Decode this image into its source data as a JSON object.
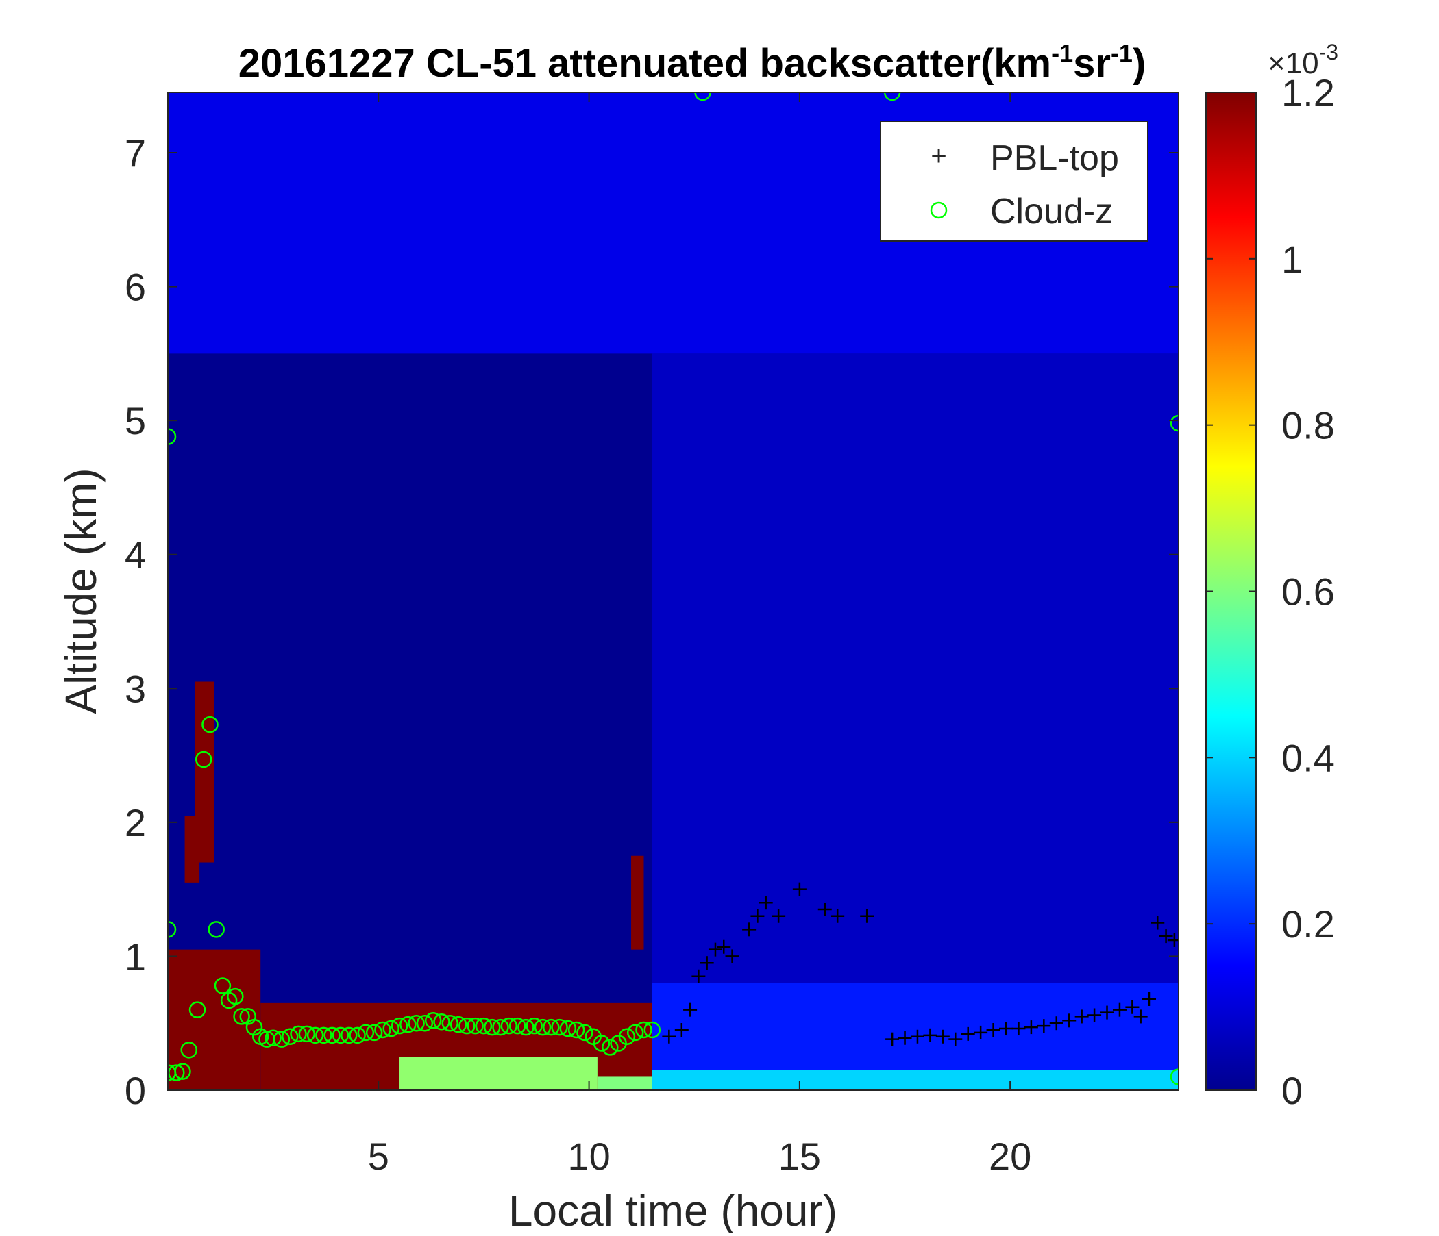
{
  "chart_data": {
    "type": "heatmap",
    "title": "20161227  CL-51 attenuated backscatter(km",
    "title_exp1": "-1",
    "title_mid": "sr",
    "title_exp2": "-1",
    "title_end": ")",
    "xlabel": "Local time (hour)",
    "ylabel": "Altitude (km)",
    "xlim": [
      0,
      24
    ],
    "ylim": [
      0,
      7.45
    ],
    "xticks": [
      5,
      10,
      15,
      20
    ],
    "yticks": [
      0,
      1,
      2,
      3,
      4,
      5,
      6,
      7
    ],
    "colorbar": {
      "range": [
        0,
        1.2
      ],
      "ticks": [
        0,
        0.2,
        0.4,
        0.6,
        0.8,
        1,
        1.2
      ],
      "tick_labels": [
        "0",
        "0.2",
        "0.4",
        "0.6",
        "0.8",
        "1",
        "1.2"
      ],
      "multiplier_base": "×10",
      "multiplier_exp": "-3",
      "colormap": "jet"
    },
    "legend": {
      "placement": "top-right",
      "entries": [
        {
          "name": "PBL-top",
          "marker": "+",
          "color": "#000000"
        },
        {
          "name": "Cloud-z",
          "marker": "o",
          "color": "#00ff00"
        }
      ]
    },
    "regions": [
      {
        "x": [
          0,
          11.5
        ],
        "y": [
          0,
          5.5
        ],
        "value": 0.0
      },
      {
        "x": [
          0,
          24
        ],
        "y": [
          5.5,
          7.45
        ],
        "value": 0.12
      },
      {
        "x": [
          11.5,
          24
        ],
        "y": [
          0,
          5.5
        ],
        "value": 0.07
      },
      {
        "x": [
          11.5,
          24
        ],
        "y": [
          0,
          0.8
        ],
        "value": 0.18
      },
      {
        "x": [
          0,
          2.2
        ],
        "y": [
          0,
          1.05
        ],
        "value": 1.2
      },
      {
        "x": [
          2.2,
          11.5
        ],
        "y": [
          0,
          0.65
        ],
        "value": 1.2
      },
      {
        "x": [
          0.4,
          0.75
        ],
        "y": [
          1.55,
          2.05
        ],
        "value": 1.2
      },
      {
        "x": [
          0.65,
          1.1
        ],
        "y": [
          1.7,
          3.05
        ],
        "value": 1.2
      },
      {
        "x": [
          11.0,
          11.3
        ],
        "y": [
          1.05,
          1.75
        ],
        "value": 1.2
      },
      {
        "x": [
          5.5,
          10.2
        ],
        "y": [
          0,
          0.25
        ],
        "value": 0.62
      },
      {
        "x": [
          10.2,
          11.5
        ],
        "y": [
          0,
          0.1
        ],
        "value": 0.6
      },
      {
        "x": [
          11.5,
          24
        ],
        "y": [
          0,
          0.15
        ],
        "value": 0.4
      }
    ],
    "series": [
      {
        "name": "PBL-top",
        "marker": "+",
        "x": [
          11.9,
          12.2,
          12.4,
          12.6,
          12.8,
          13.0,
          13.2,
          13.4,
          13.8,
          14.0,
          14.2,
          14.5,
          15.0,
          15.6,
          15.9,
          16.6,
          23.5,
          23.7,
          23.9,
          17.2,
          17.5,
          17.8,
          18.1,
          18.4,
          18.7,
          19.0,
          19.3,
          19.6,
          19.9,
          20.2,
          20.5,
          20.8,
          21.1,
          21.4,
          21.7,
          22.0,
          22.3,
          22.6,
          22.9,
          23.1,
          23.3
        ],
        "y": [
          0.4,
          0.45,
          0.6,
          0.85,
          0.95,
          1.05,
          1.07,
          1.0,
          1.2,
          1.3,
          1.4,
          1.3,
          1.5,
          1.35,
          1.3,
          1.3,
          1.25,
          1.15,
          1.12,
          0.38,
          0.39,
          0.4,
          0.41,
          0.4,
          0.38,
          0.42,
          0.43,
          0.45,
          0.46,
          0.46,
          0.47,
          0.48,
          0.5,
          0.52,
          0.55,
          0.56,
          0.58,
          0.6,
          0.62,
          0.55,
          0.68
        ]
      },
      {
        "name": "Cloud-z",
        "marker": "o",
        "x": [
          0.0,
          0.2,
          0.35,
          0.5,
          0.7,
          0.85,
          1.0,
          1.15,
          1.3,
          1.45,
          1.6,
          1.75,
          1.9,
          2.05,
          2.2,
          2.35,
          2.5,
          2.7,
          2.9,
          3.1,
          3.3,
          3.5,
          3.7,
          3.9,
          4.1,
          4.3,
          4.5,
          4.7,
          4.9,
          5.1,
          5.3,
          5.5,
          5.7,
          5.9,
          6.1,
          6.3,
          6.5,
          6.7,
          6.9,
          7.1,
          7.3,
          7.5,
          7.7,
          7.9,
          8.1,
          8.3,
          8.5,
          8.7,
          8.9,
          9.1,
          9.3,
          9.5,
          9.7,
          9.9,
          10.1,
          10.3,
          10.5,
          10.7,
          10.9,
          11.1,
          11.3,
          11.5,
          12.7,
          17.2,
          24.0,
          24.0,
          0.0,
          0.0
        ],
        "y": [
          0.13,
          0.13,
          0.14,
          0.3,
          0.6,
          2.47,
          2.73,
          1.2,
          0.78,
          0.67,
          0.7,
          0.55,
          0.55,
          0.47,
          0.4,
          0.38,
          0.39,
          0.38,
          0.4,
          0.42,
          0.42,
          0.41,
          0.41,
          0.41,
          0.41,
          0.41,
          0.41,
          0.43,
          0.43,
          0.45,
          0.46,
          0.48,
          0.49,
          0.5,
          0.5,
          0.52,
          0.51,
          0.5,
          0.49,
          0.48,
          0.48,
          0.48,
          0.47,
          0.47,
          0.48,
          0.48,
          0.47,
          0.48,
          0.47,
          0.47,
          0.47,
          0.46,
          0.45,
          0.43,
          0.4,
          0.35,
          0.32,
          0.35,
          0.4,
          0.43,
          0.45,
          0.45,
          7.45,
          7.45,
          4.98,
          0.1,
          4.88,
          1.2
        ]
      }
    ]
  }
}
